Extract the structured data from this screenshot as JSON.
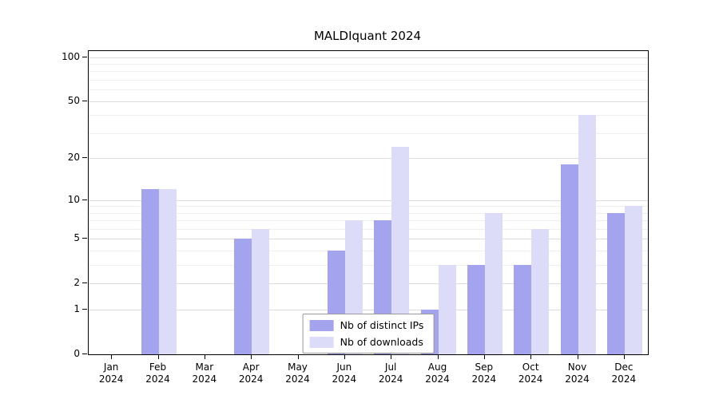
{
  "title": "MALDIquant 2024",
  "chart_data": {
    "type": "bar",
    "categories": [
      "Jan",
      "Feb",
      "Mar",
      "Apr",
      "May",
      "Jun",
      "Jul",
      "Aug",
      "Sep",
      "Oct",
      "Nov",
      "Dec"
    ],
    "category_year": "2024",
    "series": [
      {
        "name": "Nb of distinct IPs",
        "color": "#a3a3ee",
        "values": [
          0,
          12,
          0,
          5,
          0,
          4,
          7,
          1,
          3,
          3,
          18,
          8
        ]
      },
      {
        "name": "Nb of downloads",
        "color": "#dcdcf8",
        "values": [
          0,
          12,
          0,
          6,
          0,
          7,
          24,
          3,
          8,
          6,
          40,
          9
        ]
      }
    ],
    "title": "MALDIquant 2024",
    "xlabel": "",
    "ylabel": "",
    "scale": "log1p",
    "yticks": [
      0,
      1,
      2,
      5,
      10,
      20,
      50,
      100
    ],
    "minor_yticks": [
      3,
      4,
      6,
      7,
      8,
      9,
      30,
      40,
      60,
      70,
      80,
      90
    ],
    "ylim": [
      0,
      110
    ],
    "grid": "horizontal",
    "legend_position": "bottom-center"
  }
}
